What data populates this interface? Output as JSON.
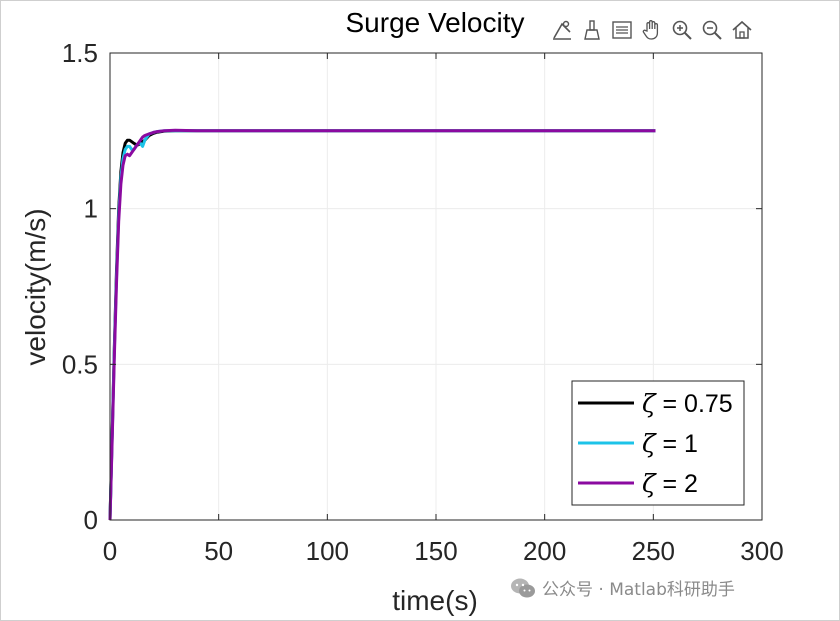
{
  "chart_data": {
    "type": "line",
    "title": "Surge Velocity",
    "xlabel": "time(s)",
    "ylabel": "velocity(m/s)",
    "xlim": [
      0,
      300
    ],
    "ylim": [
      0,
      1.5
    ],
    "xticks": [
      0,
      50,
      100,
      150,
      200,
      250,
      300
    ],
    "xtick_labels": [
      "0",
      "50",
      "100",
      "150",
      "200",
      "250",
      "300"
    ],
    "yticks": [
      0,
      0.5,
      1,
      1.5
    ],
    "ytick_labels": [
      "0",
      "0.5",
      "1",
      "1.5"
    ],
    "grid": true,
    "legend_position": "bottom-right",
    "series": [
      {
        "name": "ζ = 0.75",
        "symbol": "ζ",
        "value_text": "= 0.75",
        "color": "#000000",
        "x": [
          0,
          1,
          2,
          3,
          4,
          5,
          6,
          7,
          8,
          9,
          10,
          11,
          12,
          13,
          14,
          15,
          16,
          18,
          20,
          22,
          25,
          30,
          40,
          50,
          70,
          100,
          150,
          200,
          251
        ],
        "y": [
          0,
          0.28,
          0.55,
          0.8,
          1.0,
          1.12,
          1.18,
          1.21,
          1.22,
          1.22,
          1.215,
          1.21,
          1.205,
          1.205,
          1.21,
          1.215,
          1.22,
          1.235,
          1.242,
          1.246,
          1.249,
          1.25,
          1.25,
          1.25,
          1.25,
          1.25,
          1.25,
          1.25,
          1.25
        ]
      },
      {
        "name": "ζ = 1",
        "symbol": "ζ",
        "value_text": "= 1",
        "color": "#1cc3e8",
        "x": [
          0,
          1,
          2,
          3,
          4,
          5,
          6,
          7,
          8,
          9,
          10,
          11,
          12,
          13,
          14,
          15,
          16,
          18,
          20,
          22,
          25,
          30,
          40,
          50,
          70,
          100,
          150,
          200,
          251
        ],
        "y": [
          0,
          0.27,
          0.54,
          0.78,
          0.98,
          1.1,
          1.16,
          1.19,
          1.2,
          1.2,
          1.19,
          1.19,
          1.2,
          1.21,
          1.21,
          1.2,
          1.22,
          1.24,
          1.245,
          1.248,
          1.25,
          1.25,
          1.25,
          1.25,
          1.25,
          1.25,
          1.25,
          1.25,
          1.25
        ]
      },
      {
        "name": "ζ = 2",
        "symbol": "ζ",
        "value_text": "= 2",
        "color": "#8b0aa0",
        "x": [
          0,
          1,
          2,
          3,
          4,
          5,
          6,
          7,
          8,
          9,
          10,
          11,
          12,
          13,
          14,
          15,
          16,
          18,
          20,
          22,
          25,
          30,
          40,
          50,
          70,
          100,
          150,
          200,
          251
        ],
        "y": [
          0,
          0.26,
          0.52,
          0.76,
          0.96,
          1.08,
          1.14,
          1.17,
          1.175,
          1.17,
          1.18,
          1.19,
          1.2,
          1.21,
          1.22,
          1.23,
          1.235,
          1.24,
          1.245,
          1.248,
          1.25,
          1.252,
          1.25,
          1.25,
          1.25,
          1.25,
          1.25,
          1.25,
          1.25
        ]
      }
    ]
  },
  "toolbar": {
    "icons": [
      "data-tips-icon",
      "brush-icon",
      "legend-icon",
      "pan-icon",
      "zoom-in-icon",
      "zoom-out-icon",
      "home-icon"
    ]
  },
  "watermark": {
    "text": "公众号 · Matlab科研助手"
  }
}
